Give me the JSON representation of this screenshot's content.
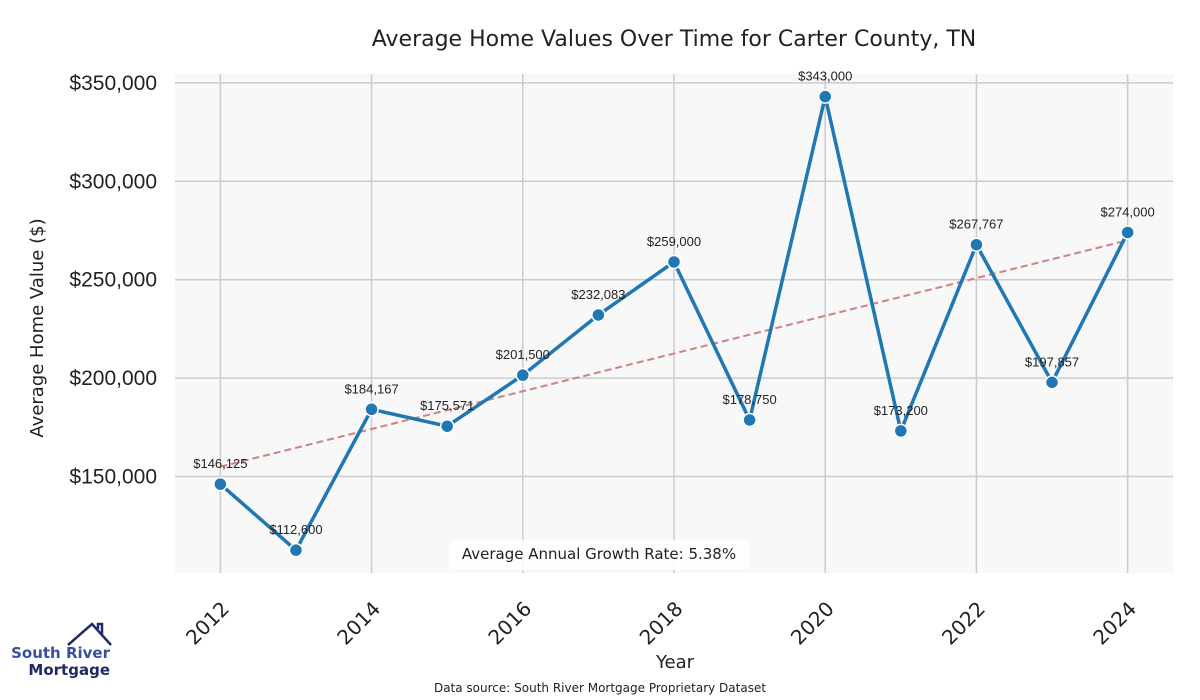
{
  "chart_data": {
    "type": "line",
    "title": "Average Home Values Over Time for Carter County, TN",
    "xlabel": "Year",
    "ylabel": "Average Home Value ($)",
    "x": [
      2012,
      2013,
      2014,
      2015,
      2016,
      2017,
      2018,
      2019,
      2020,
      2021,
      2022,
      2023,
      2024
    ],
    "series": [
      {
        "name": "Average Home Value",
        "color": "#1f77b4",
        "values": [
          146125,
          112600,
          184167,
          175571,
          201500,
          232083,
          259000,
          178750,
          343000,
          173200,
          267767,
          197857,
          274000
        ],
        "labels": [
          "$146,125",
          "$112,600",
          "$184,167",
          "$175,571",
          "$201,500",
          "$232,083",
          "$259,000",
          "$178,750",
          "$343,000",
          "$173,200",
          "$267,767",
          "$197,857",
          "$274,000"
        ]
      }
    ],
    "trend": {
      "name": "Trend line",
      "color": "#d47f7f",
      "style": "dashed",
      "start": [
        2012,
        155000
      ],
      "end": [
        2024,
        270000
      ]
    },
    "xticks": [
      2012,
      2014,
      2016,
      2018,
      2020,
      2022,
      2024
    ],
    "xtick_labels": [
      "2012",
      "2014",
      "2016",
      "2018",
      "2020",
      "2022",
      "2024"
    ],
    "yticks": [
      150000,
      200000,
      250000,
      300000,
      350000
    ],
    "ytick_labels": [
      "$150,000",
      "$200,000",
      "$250,000",
      "$300,000",
      "$350,000"
    ],
    "xlim": [
      2011.4,
      2024.6
    ],
    "ylim": [
      101000,
      354500
    ],
    "grid": true,
    "annotation": "Average Annual Growth Rate: 5.38%",
    "source": "Data source: South River Mortgage Proprietary Dataset",
    "plot_background": "#f8f8f8",
    "grid_color": "#cccccc"
  },
  "logo": {
    "line1": "South River",
    "line2": "Mortgage"
  }
}
